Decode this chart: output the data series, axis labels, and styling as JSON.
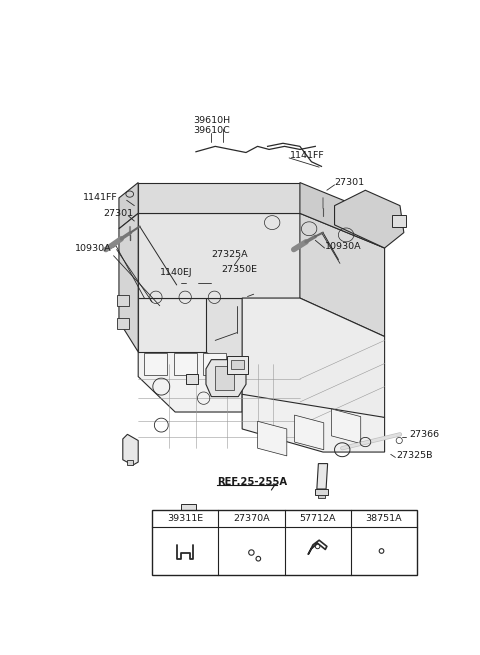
{
  "bg_color": "#ffffff",
  "line_color": "#2a2a2a",
  "text_color": "#1a1a1a",
  "fig_width": 4.8,
  "fig_height": 6.55,
  "dpi": 100,
  "labels": {
    "top_c1": "39610H",
    "top_c2": "39610C",
    "tr1": "1141FF",
    "tr2": "27301",
    "tl1": "1141FF",
    "tl2": "27301",
    "lb": "10930A",
    "cl1": "1140EJ",
    "cl2": "27325A",
    "cl3": "27350E",
    "rm": "10930A",
    "br1": "27366",
    "br2": "27325B",
    "ref": "REF.25-255A",
    "table_headers": [
      "39311E",
      "27370A",
      "57712A",
      "38751A"
    ]
  }
}
